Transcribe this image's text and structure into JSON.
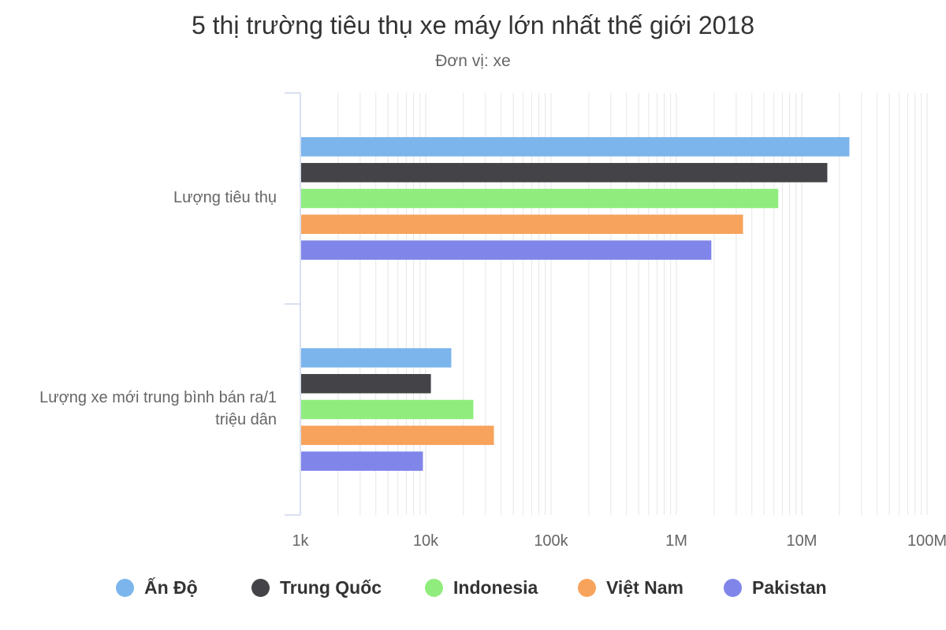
{
  "chart_data": {
    "type": "bar",
    "orientation": "horizontal",
    "title": "5 thị trường tiêu thụ xe máy lớn nhất thế giới 2018",
    "subtitle": "Đơn vị: xe",
    "x_scale": "log",
    "xlim": [
      1000,
      150000000
    ],
    "x_tick_values": [
      1000,
      10000,
      100000,
      1000000,
      10000000,
      100000000
    ],
    "x_tick_labels": [
      "1k",
      "10k",
      "100k",
      "1M",
      "10M",
      "100M"
    ],
    "grid": true,
    "legend_position": "bottom",
    "categories": [
      "Lượng tiêu thụ",
      "Lượng xe mới trung bình bán ra/1 triệu dân"
    ],
    "series": [
      {
        "name": "Ấn Độ",
        "color": "#7cb5ec",
        "values": [
          24000000,
          16000
        ]
      },
      {
        "name": "Trung Quốc",
        "color": "#434348",
        "values": [
          16000000,
          11000
        ]
      },
      {
        "name": "Indonesia",
        "color": "#90ed7d",
        "values": [
          6500000,
          24000
        ]
      },
      {
        "name": "Việt Nam",
        "color": "#f7a35c",
        "values": [
          3400000,
          35000
        ]
      },
      {
        "name": "Pakistan",
        "color": "#8085e9",
        "values": [
          1900000,
          9500
        ]
      }
    ]
  }
}
